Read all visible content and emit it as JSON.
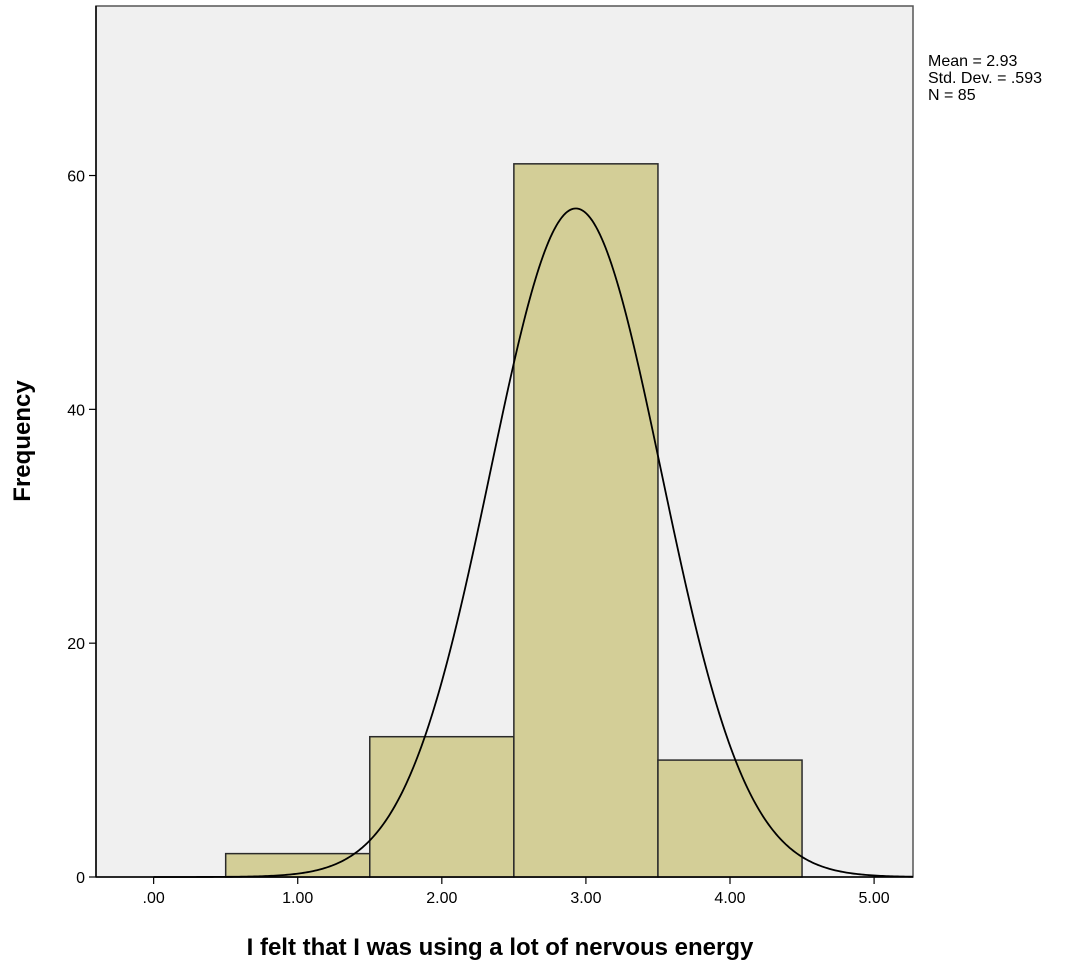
{
  "chart_data": {
    "type": "bar",
    "subtype": "histogram",
    "xlabel": "I felt that I was using a lot of nervous energy",
    "ylabel": "Frequency",
    "x_ticks": [
      ".00",
      "1.00",
      "2.00",
      "3.00",
      "4.00",
      "5.00"
    ],
    "x_tick_values": [
      0,
      1,
      2,
      3,
      4,
      5
    ],
    "y_ticks": [
      "0",
      "20",
      "40",
      "60"
    ],
    "y_tick_values": [
      0,
      20,
      40,
      60
    ],
    "xlim": [
      -0.4,
      5.27
    ],
    "ylim": [
      0,
      74.5
    ],
    "bins": [
      {
        "x0": 0.5,
        "x1": 1.5,
        "count": 2
      },
      {
        "x0": 1.5,
        "x1": 2.5,
        "count": 12
      },
      {
        "x0": 2.5,
        "x1": 3.5,
        "count": 61
      },
      {
        "x0": 3.5,
        "x1": 4.5,
        "count": 10
      }
    ],
    "normal_curve": {
      "mean": 2.93,
      "sd": 0.593,
      "n": 85,
      "bin_width": 1
    },
    "stats_text": [
      "Mean = 2.93",
      "Std. Dev. = .593",
      "N = 85"
    ],
    "grid": false,
    "legend": "none"
  },
  "colors": {
    "plot_background": "#f0f0f0",
    "bar_fill": "#d3ce97",
    "bar_stroke": "#2a2a2a",
    "curve": "#000000",
    "frame": "#555555"
  }
}
